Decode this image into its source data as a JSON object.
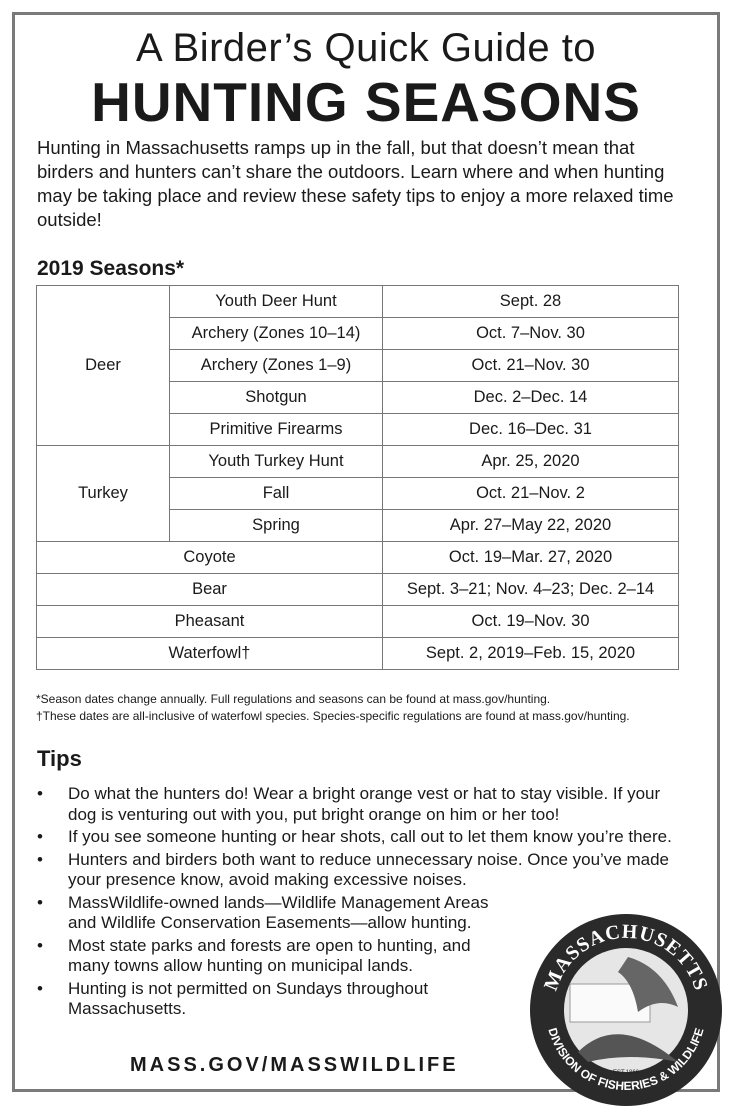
{
  "title_line1": "A Birder’s Quick Guide to",
  "title_line2": "HUNTING SEASONS",
  "intro": "Hunting in Massachusetts ramps up in the fall, but that doesn’t mean that birders and hunters can’t share the outdoors. Learn where and when hunting may be taking place and review these safety tips to enjoy a more relaxed time outside!",
  "seasons_heading": "2019 Seasons*",
  "seasons": {
    "deer": {
      "label": "Deer",
      "rows": [
        {
          "type": "Youth Deer Hunt",
          "dates": "Sept. 28"
        },
        {
          "type": "Archery (Zones 10–14)",
          "dates": "Oct. 7–Nov. 30"
        },
        {
          "type": "Archery (Zones 1–9)",
          "dates": "Oct. 21–Nov. 30"
        },
        {
          "type": "Shotgun",
          "dates": "Dec. 2–Dec. 14"
        },
        {
          "type": "Primitive Firearms",
          "dates": "Dec. 16–Dec. 31"
        }
      ]
    },
    "turkey": {
      "label": "Turkey",
      "rows": [
        {
          "type": "Youth Turkey Hunt",
          "dates": "Apr. 25, 2020"
        },
        {
          "type": "Fall",
          "dates": "Oct. 21–Nov. 2"
        },
        {
          "type": "Spring",
          "dates": "Apr. 27–May 22, 2020"
        }
      ]
    },
    "others": [
      {
        "label": "Coyote",
        "dates": "Oct. 19–Mar. 27, 2020"
      },
      {
        "label": "Bear",
        "dates": "Sept. 3–21; Nov. 4–23; Dec. 2–14"
      },
      {
        "label": "Pheasant",
        "dates": "Oct. 19–Nov. 30"
      },
      {
        "label": "Waterfowl†",
        "dates": "Sept. 2, 2019–Feb. 15, 2020"
      }
    ]
  },
  "notes": [
    "*Season dates change annually. Full regulations and seasons can be found at mass.gov/hunting.",
    "†These dates are all-inclusive of waterfowl species. Species-specific regulations are found at mass.gov/hunting."
  ],
  "tips_heading": "Tips",
  "bullet": "•",
  "tips": [
    "Do what the hunters do! Wear a bright orange vest or hat to stay visible. If your dog is venturing out with you, put bright orange on him or her too!",
    "If you see someone hunting or hear shots, call out to let them know you’re there.",
    "Hunters and birders both want to reduce unnecessary noise. Once you’ve made your presence know, avoid making excessive noises.",
    "MassWildlife-owned lands—Wildlife Management Areas and Wildlife Conservation Easements—allow hunting.",
    "Most state parks and forests are open to hunting, and many towns allow hunting on municipal lands.",
    "Hunting is not permitted on Sundays throughout Massachusetts."
  ],
  "footer": "MASS.GOV/MASSWILDLIFE",
  "logo": {
    "top": "MASSACHUSETTS",
    "bottom": "DIVISION OF FISHERIES & WILDLIFE",
    "est": "EST.1866"
  }
}
